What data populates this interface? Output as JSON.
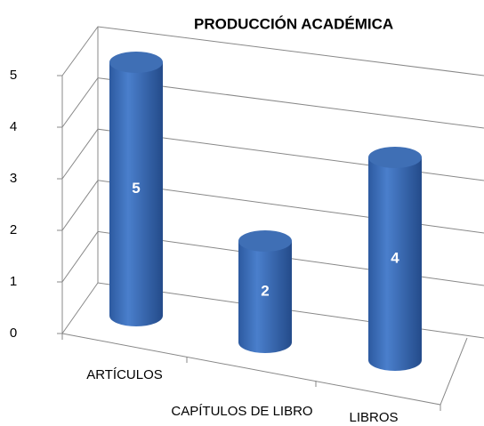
{
  "chart_data": {
    "type": "bar",
    "title": "PRODUCCIÓN ACADÉMICA",
    "categories": [
      "ARTÍCULOS",
      "CAPÍTULOS DE LIBRO",
      "LIBROS"
    ],
    "values": [
      5,
      2,
      4
    ],
    "color": "#3f6fb5",
    "ylim": [
      0,
      5
    ],
    "yticks": [
      0,
      1,
      2,
      3,
      4,
      5
    ],
    "grid": true
  }
}
